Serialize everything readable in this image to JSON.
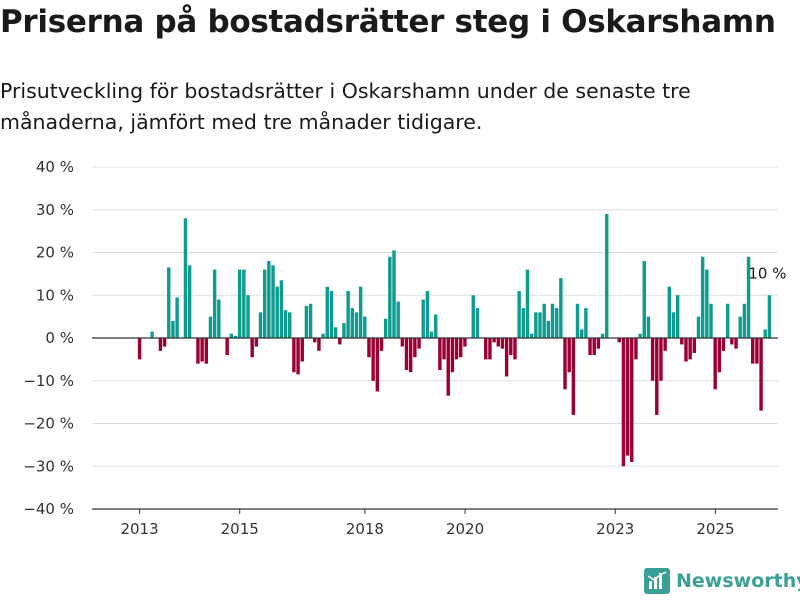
{
  "title": "Priserna på bostadsrätter steg i Oskarshamn",
  "subtitle": "Prisutveckling för bostadsrätter i Oskarshamn under de senaste tre månaderna, jämfört med tre månader tidigare.",
  "brand": {
    "name": "Newsworthy",
    "icon": "bar-chart-logo-icon"
  },
  "colors": {
    "positive": "#0f9c8e",
    "negative": "#9a0036",
    "grid": "#dddddd",
    "axis": "#333333",
    "brand": "#3a9f95"
  },
  "chart_data": {
    "type": "bar",
    "ylim": [
      -40,
      40
    ],
    "yticks": [
      40,
      30,
      20,
      10,
      0,
      -10,
      -20,
      -30,
      -40
    ],
    "ytick_labels": [
      "40 %",
      "30 %",
      "20 %",
      "10 %",
      "0 %",
      "−10 %",
      "−20 %",
      "−30 %",
      "−40 %"
    ],
    "xticks": [
      {
        "label": "2013",
        "x": 2013.0
      },
      {
        "label": "2015",
        "x": 2015.0
      },
      {
        "label": "2018",
        "x": 2017.5
      },
      {
        "label": "2020",
        "x": 2019.5
      },
      {
        "label": "2023",
        "x": 2022.5
      },
      {
        "label": "2025",
        "x": 2024.5
      }
    ],
    "x_start": 2013.0,
    "x_step": 0.0833,
    "values": [
      -5,
      0,
      0,
      1.5,
      0,
      -3,
      -2,
      16.5,
      4,
      9.5,
      0,
      28,
      17,
      0,
      -6,
      -5.5,
      -6,
      5,
      16,
      9,
      0,
      -4,
      1,
      0.5,
      16,
      16,
      10,
      -4.5,
      -2,
      6,
      16,
      18,
      17,
      12,
      13.5,
      6.5,
      6,
      -8,
      -8.5,
      -5.5,
      7.5,
      8,
      -1,
      -3,
      1,
      12,
      11,
      2.5,
      -1.5,
      3.5,
      11,
      7,
      6,
      12,
      5,
      -4.5,
      -10,
      -12.5,
      -3,
      4.5,
      19,
      20.5,
      8.5,
      -2,
      -7.5,
      -8,
      -4.5,
      -2.5,
      9,
      11,
      1.5,
      5.5,
      -7.5,
      -5,
      -13.5,
      -8,
      -5,
      -4.5,
      -2,
      0,
      10,
      7,
      0,
      -5,
      -5,
      -1,
      -2,
      -2.5,
      -9,
      -4,
      -5,
      11,
      7,
      16,
      1,
      6,
      6,
      8,
      4,
      8,
      7,
      14,
      -12,
      -8,
      -18,
      8,
      2,
      7,
      -4,
      -4,
      -2.5,
      1,
      29,
      0,
      0,
      -1,
      -30,
      -27.5,
      -29,
      -5,
      1,
      18,
      5,
      -10,
      -18,
      -10,
      -3,
      12,
      6,
      10,
      -1.5,
      -5.5,
      -5,
      -3.5,
      5,
      19,
      16,
      8,
      -12,
      -8,
      -3,
      8,
      -1.5,
      -2.5,
      5,
      8,
      19,
      -6,
      -6,
      -17,
      2,
      10
    ],
    "annotation": {
      "text": "10 %",
      "index": 151
    }
  }
}
